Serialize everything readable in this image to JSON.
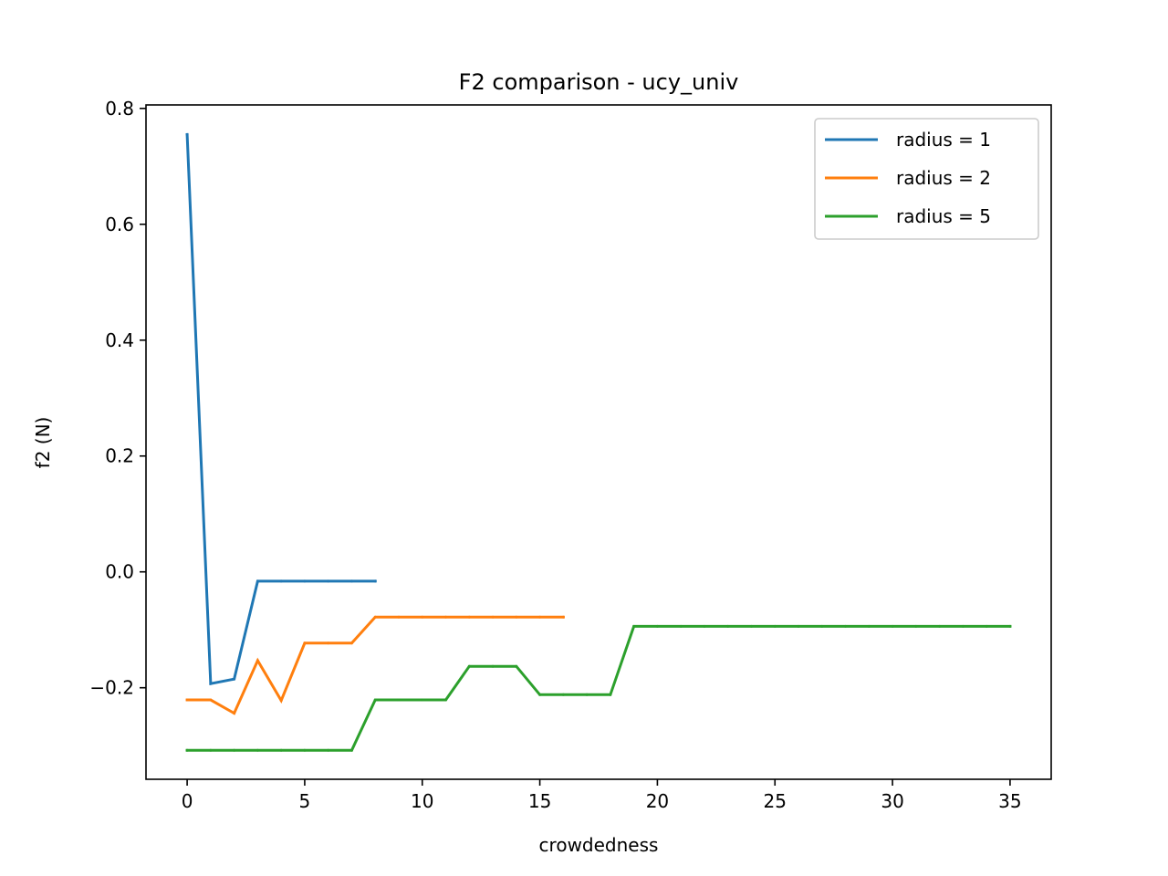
{
  "chart_data": {
    "type": "line",
    "title": "F2 comparison - ucy_univ",
    "xlabel": "crowdedness",
    "ylabel": "f2 (N)",
    "xlim": [
      -1.75,
      36.75
    ],
    "ylim": [
      -0.358,
      0.806
    ],
    "xticks": [
      0,
      5,
      10,
      15,
      20,
      25,
      30,
      35
    ],
    "yticks": [
      -0.2,
      0.0,
      0.2,
      0.4,
      0.6,
      0.8
    ],
    "ytick_labels": [
      "−0.2",
      "0.0",
      "0.2",
      "0.4",
      "0.6",
      "0.8"
    ],
    "legend_position": "upper right",
    "grid": false,
    "series": [
      {
        "name": "radius = 1",
        "color": "#1f77b4",
        "x": [
          0,
          1,
          2,
          3,
          4,
          5,
          6,
          7,
          8
        ],
        "y": [
          0.755,
          -0.193,
          -0.185,
          -0.016,
          -0.016,
          -0.016,
          -0.016,
          -0.016,
          -0.016
        ]
      },
      {
        "name": "radius = 2",
        "color": "#ff7f0e",
        "x": [
          0,
          1,
          2,
          3,
          4,
          5,
          6,
          7,
          8,
          9,
          10,
          11,
          12,
          13,
          14,
          15,
          16
        ],
        "y": [
          -0.221,
          -0.221,
          -0.244,
          -0.153,
          -0.222,
          -0.123,
          -0.123,
          -0.123,
          -0.078,
          -0.078,
          -0.078,
          -0.078,
          -0.078,
          -0.078,
          -0.078,
          -0.078,
          -0.078
        ]
      },
      {
        "name": "radius = 5",
        "color": "#2ca02c",
        "x": [
          0,
          1,
          2,
          3,
          4,
          5,
          6,
          7,
          8,
          9,
          10,
          11,
          12,
          13,
          14,
          15,
          16,
          17,
          18,
          19,
          20,
          21,
          22,
          23,
          24,
          25,
          26,
          27,
          28,
          29,
          30,
          31,
          32,
          33,
          34,
          35
        ],
        "y": [
          -0.308,
          -0.308,
          -0.308,
          -0.308,
          -0.308,
          -0.308,
          -0.308,
          -0.308,
          -0.221,
          -0.221,
          -0.221,
          -0.221,
          -0.163,
          -0.163,
          -0.163,
          -0.212,
          -0.212,
          -0.212,
          -0.212,
          -0.094,
          -0.094,
          -0.094,
          -0.094,
          -0.094,
          -0.094,
          -0.094,
          -0.094,
          -0.094,
          -0.094,
          -0.094,
          -0.094,
          -0.094,
          -0.094,
          -0.094,
          -0.094,
          -0.094
        ]
      }
    ]
  }
}
